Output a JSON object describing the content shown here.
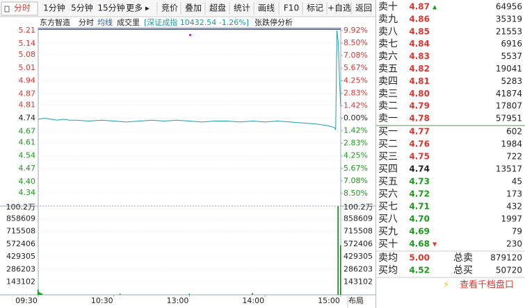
{
  "toolbar": {
    "tabs": [
      "分时",
      "1分钟",
      "5分钟",
      "15分钟",
      "更多 ▸",
      "竞价",
      "叠加",
      "超盘",
      "统计",
      "画线",
      "F10",
      "标记",
      "+自选",
      "返回"
    ]
  },
  "chart_header": {
    "stock": "东方智造",
    "mode": "分时",
    "avg": "均线",
    "volume": "成交里",
    "index": "[深证成指 10432.54 -1.26%]",
    "limit": "张跌停分析"
  },
  "chart_data": [
    {
      "type": "line",
      "xlim": [
        0,
        240
      ],
      "xticks": [
        {
          "value": 0,
          "label": "09:30"
        },
        {
          "value": 60,
          "label": "10:30"
        },
        {
          "value": 120,
          "label": "13:00"
        },
        {
          "value": 180,
          "label": "14:00"
        },
        {
          "value": 240,
          "label": "15:00"
        }
      ],
      "ylim": [
        4.27,
        5.21
      ],
      "yticks": [
        5.21,
        5.14,
        5.08,
        5.01,
        4.94,
        4.87,
        4.81,
        4.74,
        4.67,
        4.61,
        4.54,
        4.47,
        {
          "value": 4.4,
          "label": "4.40"
        },
        4.34
      ],
      "y2lim": [
        -9.92,
        9.92
      ],
      "y2ticks": [
        {
          "value": 9.92,
          "label": "9.92%"
        },
        {
          "value": 8.5,
          "label": "8.50%"
        },
        {
          "value": 7.08,
          "label": "7.08%"
        },
        {
          "value": 5.67,
          "label": "5.67%"
        },
        {
          "value": 4.25,
          "label": "4.25%"
        },
        {
          "value": 2.83,
          "label": "2.83%"
        },
        {
          "value": 1.42,
          "label": "1.42%"
        },
        {
          "value": 0,
          "label": "0.00%"
        },
        {
          "value": -1.42,
          "label": "1.42%"
        },
        {
          "value": -2.83,
          "label": "2.83%"
        },
        {
          "value": -4.25,
          "label": "4.25%"
        },
        {
          "value": -5.67,
          "label": "5.67%"
        },
        {
          "value": -7.08,
          "label": "7.08%"
        },
        {
          "value": -8.5,
          "label": "8.50%"
        }
      ],
      "series": [
        {
          "color": "#1aa0ad",
          "x": [
            0,
            5,
            10,
            15,
            20,
            25,
            30,
            40,
            50,
            60,
            70,
            80,
            90,
            100,
            110,
            120,
            130,
            140,
            150,
            160,
            170,
            180,
            190,
            200,
            210,
            220,
            225,
            230,
            235,
            236,
            237,
            238,
            239,
            240
          ],
          "values": [
            4.735,
            4.74,
            4.735,
            4.73,
            4.735,
            4.73,
            4.73,
            4.725,
            4.73,
            4.725,
            4.72,
            4.725,
            4.73,
            4.725,
            4.73,
            4.725,
            4.72,
            4.725,
            4.725,
            4.72,
            4.725,
            4.72,
            4.725,
            4.72,
            4.715,
            4.71,
            4.705,
            4.7,
            4.69,
            4.68,
            5.21,
            5.15,
            4.95,
            4.8
          ]
        }
      ]
    },
    {
      "type": "bar",
      "ylim": [
        0,
        1002000
      ],
      "yticks": [
        {
          "value": 1002000,
          "label": "100.2万"
        },
        858609,
        715508,
        572406,
        429305,
        286203,
        143102
      ],
      "color": "#0b8a12",
      "x": [
        0,
        1,
        2,
        3,
        65,
        120,
        170,
        238,
        240
      ],
      "values": [
        60000,
        30000,
        20000,
        15000,
        12000,
        12000,
        20000,
        1002000,
        560000
      ]
    }
  ],
  "order_book": {
    "asks": [
      [
        "卖十",
        "4.87",
        "64956"
      ],
      [
        "卖九",
        "4.86",
        "35319"
      ],
      [
        "卖八",
        "4.85",
        "21553"
      ],
      [
        "卖七",
        "4.84",
        "6916"
      ],
      [
        "卖六",
        "4.83",
        "5537"
      ],
      [
        "卖五",
        "4.82",
        "19041"
      ],
      [
        "卖四",
        "4.81",
        "5283"
      ],
      [
        "卖三",
        "4.80",
        "41874"
      ],
      [
        "卖二",
        "4.79",
        "17807"
      ],
      [
        "卖一",
        "4.78",
        "57951"
      ]
    ],
    "bids": [
      [
        "买一",
        "4.77",
        "602"
      ],
      [
        "买二",
        "4.76",
        "1984"
      ],
      [
        "买三",
        "4.75",
        "722"
      ],
      [
        "买四",
        "4.74",
        "13517"
      ],
      [
        "买五",
        "4.73",
        "45"
      ],
      [
        "买六",
        "4.72",
        "173"
      ],
      [
        "买七",
        "4.71",
        "432"
      ],
      [
        "买八",
        "4.70",
        "1997"
      ],
      [
        "买九",
        "4.69",
        "79"
      ],
      [
        "买十",
        "4.68",
        "230"
      ]
    ],
    "summary": [
      [
        "卖均",
        "5.00",
        "总卖",
        "879120"
      ],
      [
        "买均",
        "4.52",
        "总买",
        "50720"
      ]
    ],
    "link": "查看千档盘口"
  }
}
